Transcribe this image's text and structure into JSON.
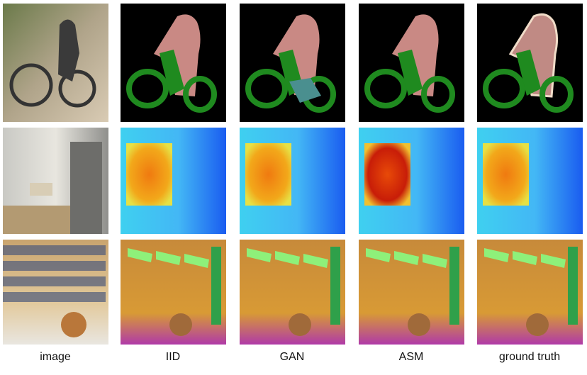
{
  "columns": [
    "image",
    "IID",
    "GAN",
    "ASM",
    "ground truth"
  ]
}
